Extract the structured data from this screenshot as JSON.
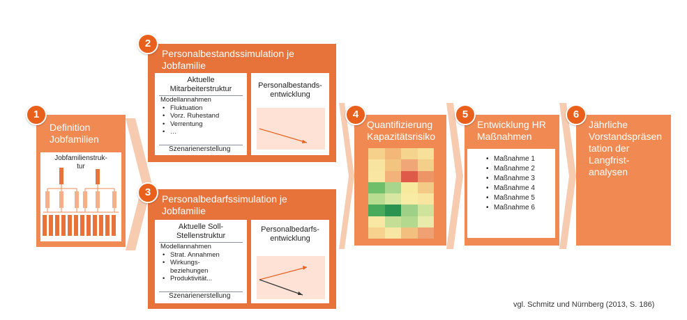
{
  "step1": {
    "number": "1",
    "title": "Definition\nJobfamilien",
    "panel_title": "Jobfamilienstruk-\ntur"
  },
  "step2": {
    "number": "2",
    "title": "Personalbestandssimulation je\nJobfamilie",
    "left_header": "Aktuelle\nMitarbeiterstruktur",
    "assumptions_title": "Modellannahmen",
    "assumptions": [
      "Fluktuation",
      "Vorz. Ruhestand",
      "Verrentung",
      "…"
    ],
    "scenario_label": "Szenarienerstellung",
    "right_header": "Personalbestands-\nentwicklung"
  },
  "step3": {
    "number": "3",
    "title": "Personalbedarfssimulation je\nJobfamilie",
    "left_header": "Aktuelle Soll-\nStellenstruktur",
    "assumptions_title": "Modellannahmen",
    "assumptions": [
      "Strat. Annahmen",
      "Wirkungs-\nbeziehungen",
      "Produktivität..."
    ],
    "scenario_label": "Szenarienerstellung",
    "right_header": "Personalbedarfs-\nentwicklung"
  },
  "step4": {
    "number": "4",
    "title": "Quantifizierung\nKapazitätsrisiko",
    "heatmap": [
      [
        "#f6d18c",
        "#f3b777",
        "#f5d58e",
        "#f6e09a"
      ],
      [
        "#f6e4a0",
        "#f3c47f",
        "#f0a676",
        "#f4cf8a"
      ],
      [
        "#f8e6a2",
        "#f2b27a",
        "#e05a4a",
        "#ee9568"
      ],
      [
        "#6fbf6a",
        "#a7d58c",
        "#f7ea9f",
        "#f4cb86"
      ],
      [
        "#b8dc90",
        "#d7e6a0",
        "#f8eba4",
        "#f7e5a0"
      ],
      [
        "#4aaa5c",
        "#2a934f",
        "#9fd088",
        "#cfe39a"
      ],
      [
        "#f8e8a4",
        "#c4de96",
        "#b3d98f",
        "#e9ebaa"
      ],
      [
        "#f6d28e",
        "#f8e6a4",
        "#f3bf7f",
        "#f0a173"
      ]
    ]
  },
  "step5": {
    "number": "5",
    "title": "Entwicklung HR\nMaßnahmen",
    "measures": [
      "Maßnahme 1",
      "Maßnahme 2",
      "Maßnahme 3",
      "Maßnahme 4",
      "Maßnahme 5",
      "Maßnahme 6"
    ]
  },
  "step6": {
    "number": "6",
    "title": "Jährliche\nVorstandspräsen\ntation der\nLangfrist-\nanalysen"
  },
  "footer": "vgl. Schmitz und Nürnberg (2013, S. 186)",
  "colors": {
    "box": "#f08a52",
    "box_dark": "#e8733a",
    "badge": "#e8601c",
    "chevron": "#f7cbb0",
    "chart_bg": "#fde2d5",
    "line_orange": "#e8601c",
    "line_dark": "#333333"
  }
}
